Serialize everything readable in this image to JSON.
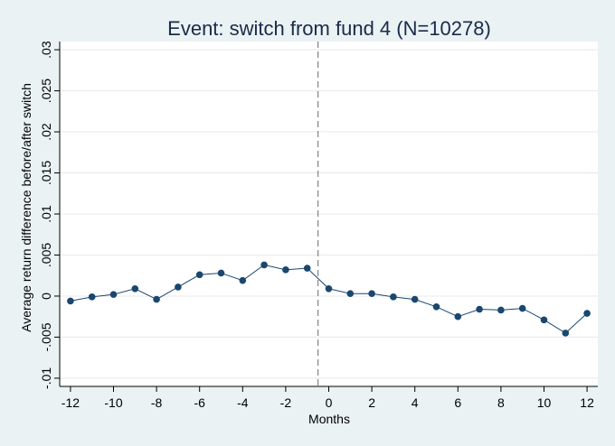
{
  "chart_data": {
    "type": "line",
    "title": "Event: switch from fund 4 (N=10278)",
    "xlabel": "Months",
    "ylabel": "Average return difference before/after switch",
    "xlim": [
      -12.5,
      12.5
    ],
    "ylim": [
      -0.011,
      0.031
    ],
    "x_ticks": [
      -12,
      -10,
      -8,
      -6,
      -4,
      -2,
      0,
      2,
      4,
      6,
      8,
      10,
      12
    ],
    "x_tick_labels": [
      "-12",
      "-10",
      "-8",
      "-6",
      "-4",
      "-2",
      "0",
      "2",
      "4",
      "6",
      "8",
      "10",
      "12"
    ],
    "y_ticks": [
      -0.01,
      -0.005,
      0,
      0.005,
      0.01,
      0.015,
      0.02,
      0.025,
      0.03
    ],
    "y_tick_labels": [
      "-.01",
      "-.005",
      "0",
      ".005",
      ".01",
      ".015",
      ".02",
      ".025",
      ".03"
    ],
    "grid": true,
    "reference_line_x": -0.5,
    "series": [
      {
        "color": "#1a476f",
        "x": [
          -12,
          -11,
          -10,
          -9,
          -8,
          -7,
          -6,
          -5,
          -4,
          -3,
          -2,
          -1,
          0,
          1,
          2,
          3,
          4,
          5,
          6,
          7,
          8,
          9,
          10,
          11,
          12
        ],
        "y": [
          -0.0006,
          -0.0001,
          0.0002,
          0.0009,
          -0.0004,
          0.0011,
          0.0026,
          0.0028,
          0.0019,
          0.0038,
          0.0032,
          0.0034,
          0.0009,
          0.0003,
          0.0003,
          -0.0001,
          -0.0004,
          -0.0013,
          -0.0025,
          -0.0016,
          -0.0017,
          -0.0015,
          -0.0029,
          -0.0045,
          -0.0021
        ]
      }
    ]
  }
}
